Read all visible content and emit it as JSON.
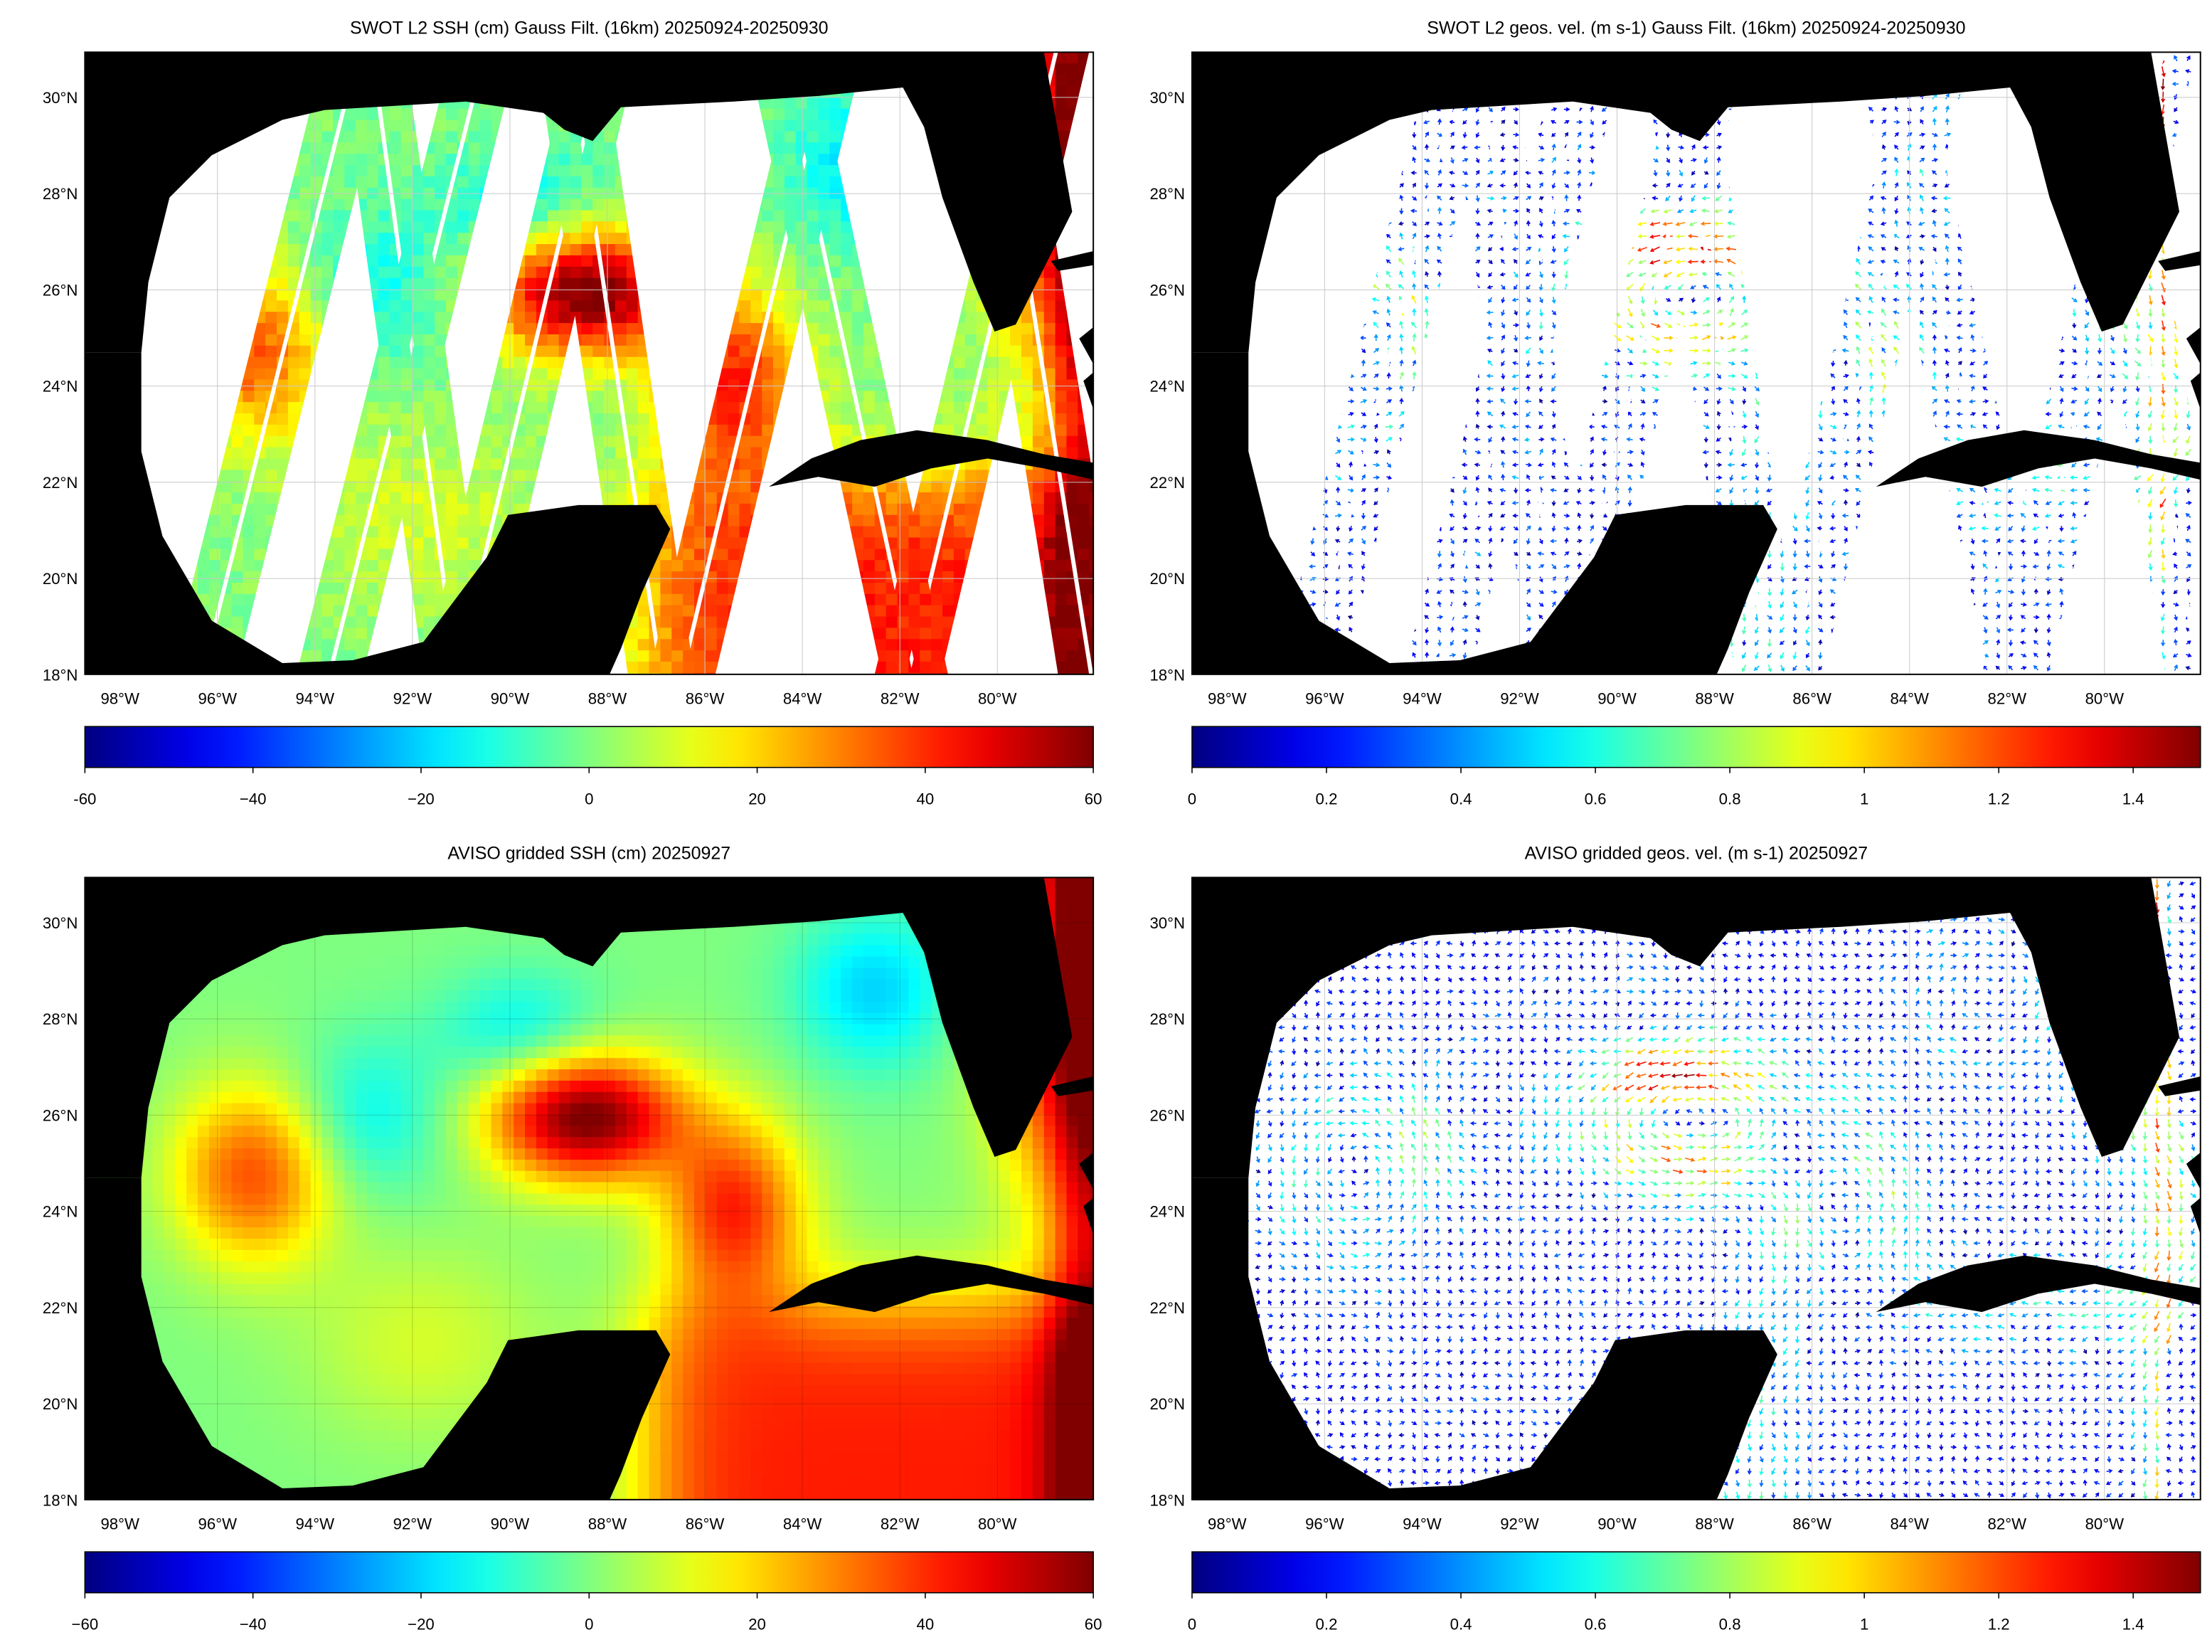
{
  "chart_data": [
    {
      "type": "heatmap",
      "title": "SWOT L2 SSH (cm) Gauss Filt. (16km) 20250924-20250930",
      "variable": "SSH (cm)",
      "colormap": "jet",
      "clim": [
        -60,
        60
      ],
      "colorbar_ticks": [
        "-60",
        "−40",
        "−20",
        "0",
        "20",
        "40",
        "60"
      ],
      "lat_ticks": [
        "18°N",
        "20°N",
        "22°N",
        "24°N",
        "26°N",
        "28°N",
        "30°N"
      ],
      "lon_ticks": [
        "98°W",
        "96°W",
        "94°W",
        "92°W",
        "90°W",
        "88°W",
        "86°W",
        "84°W",
        "82°W",
        "80°W"
      ]
    },
    {
      "type": "vector",
      "title": "SWOT L2 geos. vel. (m s-1) Gauss Filt. (16km) 20250924-20250930",
      "variable": "geostrophic velocity (m s-1)",
      "colormap": "jet",
      "clim": [
        0,
        1.5
      ],
      "colorbar_ticks": [
        "0",
        "0.2",
        "0.4",
        "0.6",
        "0.8",
        "1",
        "1.2",
        "1.4"
      ],
      "lat_ticks": [
        "18°N",
        "20°N",
        "22°N",
        "24°N",
        "26°N",
        "28°N",
        "30°N"
      ],
      "lon_ticks": [
        "98°W",
        "96°W",
        "94°W",
        "92°W",
        "90°W",
        "88°W",
        "86°W",
        "84°W",
        "82°W",
        "80°W"
      ]
    },
    {
      "type": "heatmap",
      "title": "AVISO gridded SSH (cm) 20250927",
      "variable": "SSH (cm)",
      "colormap": "jet",
      "clim": [
        -60,
        60
      ],
      "colorbar_ticks": [
        "−60",
        "−40",
        "−20",
        "0",
        "20",
        "40",
        "60"
      ],
      "lat_ticks": [
        "18°N",
        "20°N",
        "22°N",
        "24°N",
        "26°N",
        "28°N",
        "30°N"
      ],
      "lon_ticks": [
        "98°W",
        "96°W",
        "94°W",
        "92°W",
        "90°W",
        "88°W",
        "86°W",
        "84°W",
        "82°W",
        "80°W"
      ]
    },
    {
      "type": "vector",
      "title": "AVISO gridded geos. vel. (m s-1)  20250927",
      "variable": "geostrophic velocity (m s-1)",
      "colormap": "jet",
      "clim": [
        0,
        1.5
      ],
      "colorbar_ticks": [
        "0",
        "0.2",
        "0.4",
        "0.6",
        "0.8",
        "1",
        "1.2",
        "1.4"
      ],
      "lat_ticks": [
        "18°N",
        "20°N",
        "22°N",
        "24°N",
        "26°N",
        "28°N",
        "30°N"
      ],
      "lon_ticks": [
        "98°W",
        "96°W",
        "94°W",
        "92°W",
        "90°W",
        "88°W",
        "86°W",
        "84°W",
        "82°W",
        "80°W"
      ]
    }
  ],
  "colors": {
    "land": "#000000",
    "ocean_nodata": "#ffffff",
    "grid": "#c8c8c8"
  }
}
